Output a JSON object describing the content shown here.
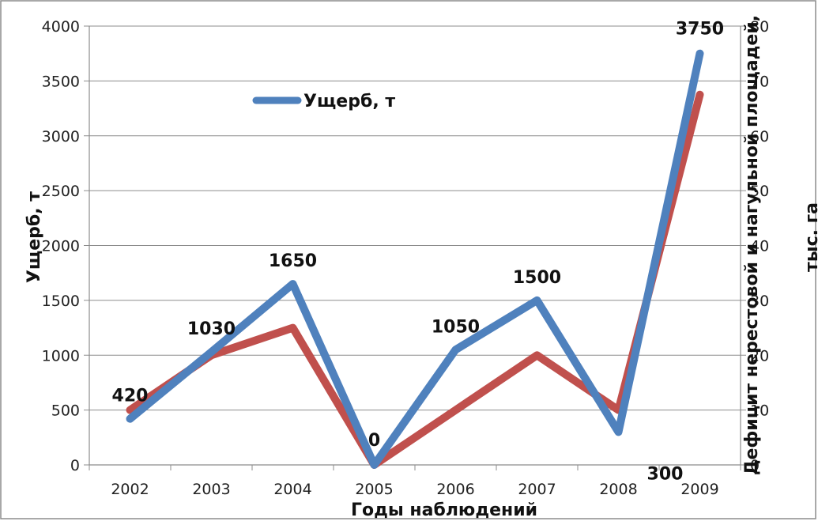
{
  "chart_data": {
    "type": "line",
    "categories": [
      "2002",
      "2003",
      "2004",
      "2005",
      "2006",
      "2007",
      "2008",
      "2009"
    ],
    "series": [
      {
        "name": "Ущерб, т",
        "axis": "left",
        "color": "#4f81bd",
        "values": [
          420,
          1030,
          1650,
          0,
          1050,
          1500,
          300,
          3750
        ]
      },
      {
        "name": "",
        "axis": "right",
        "color": "#c0504d",
        "values": [
          10,
          20,
          25,
          0,
          10,
          20,
          10,
          67.5
        ]
      }
    ],
    "data_labels": [
      "420",
      "1030",
      "1650",
      "0",
      "1050",
      "1500",
      "300",
      "3750"
    ],
    "xlabel": "Годы наблюдений",
    "ylabel": "Ущерб, т",
    "y2label_line1": "Дефицит нерестовой и нагульной площадей,",
    "y2label_line2": "тыс. га",
    "ylim": [
      0,
      4000
    ],
    "y2lim": [
      0,
      80
    ],
    "yticks": [
      "0",
      "500",
      "1000",
      "1500",
      "2000",
      "2500",
      "3000",
      "3500",
      "4000"
    ],
    "y2ticks": [
      "0",
      "10",
      "20",
      "30",
      "40",
      "50",
      "60",
      "70",
      "80"
    ],
    "grid": true,
    "legend_position": "top-left inside plot",
    "legend_entries": [
      "Ущерб, т"
    ]
  }
}
